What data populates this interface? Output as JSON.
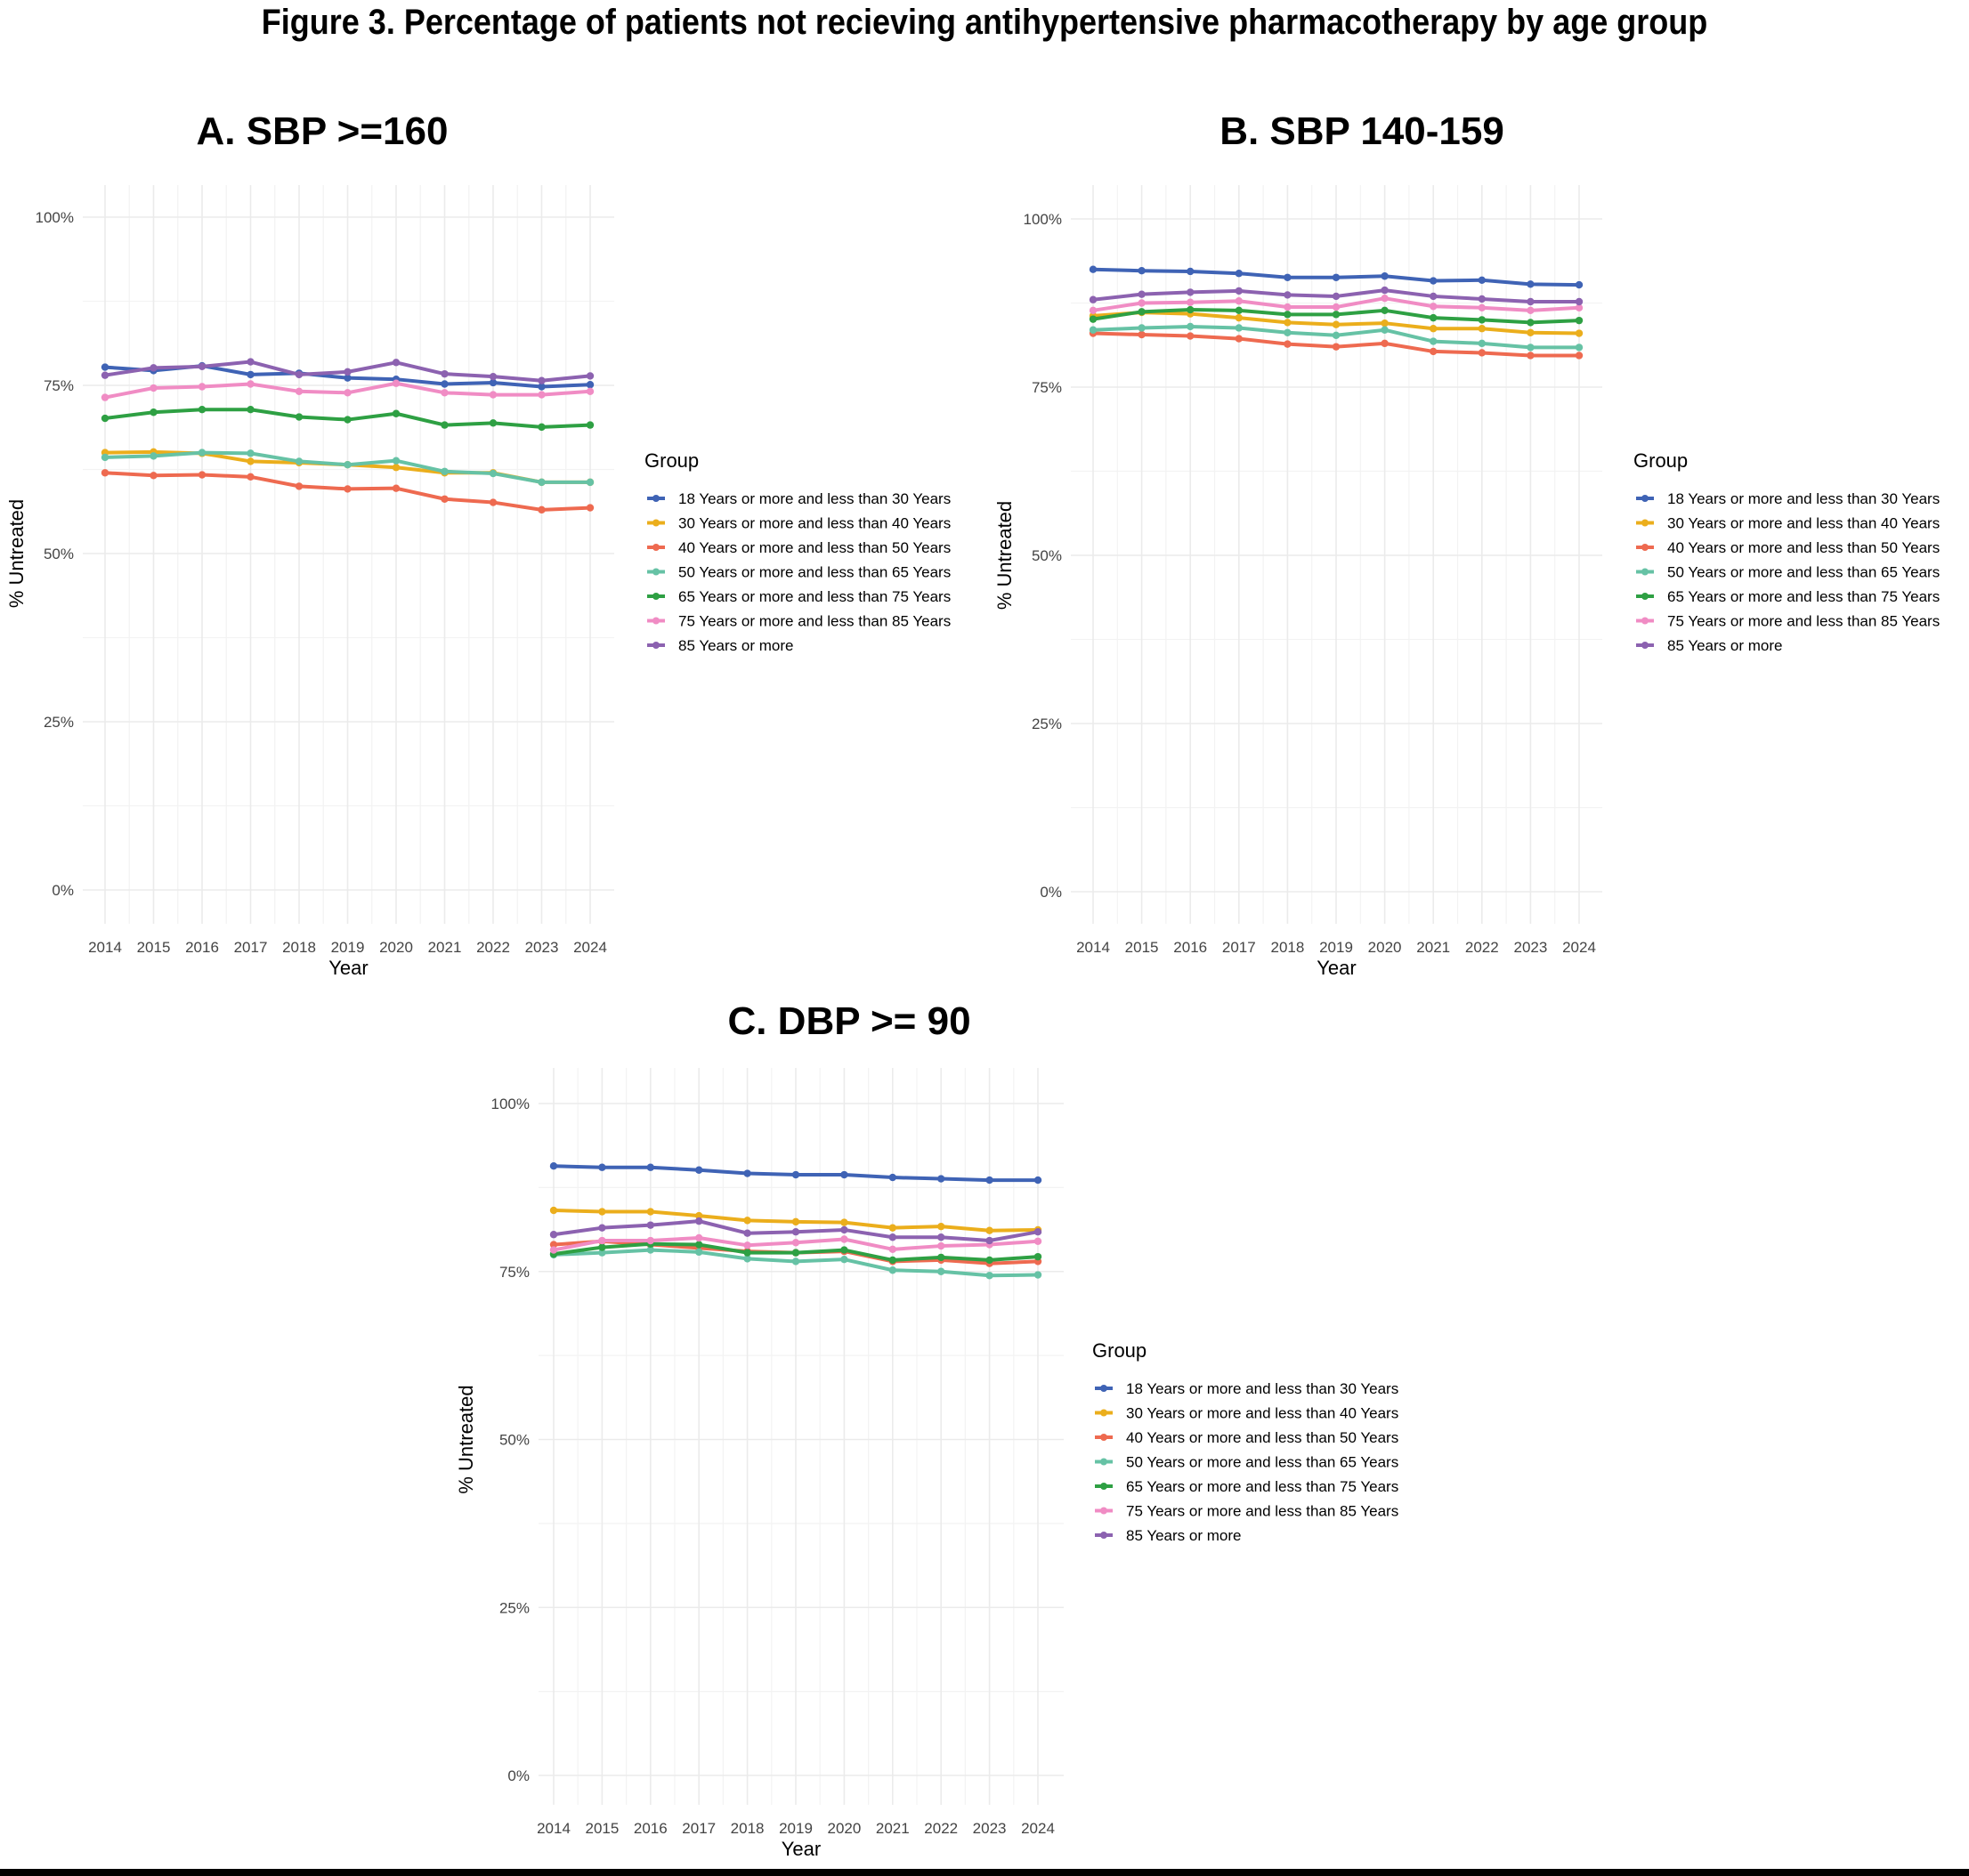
{
  "title": "Figure 3. Percentage of patients not recieving antihypertensive pharmacotherapy by age group",
  "legend_title": "Group",
  "colors": {
    "18 Years or more and less than 30 Years": "#3F63B5",
    "30 Years or more and less than 40 Years": "#EBAE1C",
    "40 Years or more and less than 50 Years": "#EE6A50",
    "50 Years or more and less than 65 Years": "#66C2A5",
    "65 Years or more and less than 75 Years": "#2EA043",
    "75 Years or more and less than 85 Years": "#F08CC4",
    "85 Years or more": "#8C62B0"
  },
  "chart_data": [
    {
      "id": "A",
      "type": "line",
      "title": "A.  SBP >=160",
      "xlabel": "Year",
      "ylabel": "% Untreated",
      "ylim": [
        0,
        100
      ],
      "yticks": [
        0,
        25,
        50,
        75,
        100
      ],
      "ytick_labels": [
        "0%",
        "25%",
        "50%",
        "75%",
        "100%"
      ],
      "x": [
        2014,
        2015,
        2016,
        2017,
        2018,
        2019,
        2020,
        2021,
        2022,
        2023,
        2024
      ],
      "legend_title": "Group",
      "series": [
        {
          "name": "18 Years or more and less than 30 Years",
          "values": [
            77.7,
            77.2,
            77.9,
            76.6,
            76.8,
            76.1,
            75.9,
            75.2,
            75.4,
            74.8,
            75.1
          ]
        },
        {
          "name": "30 Years or more and less than 40 Years",
          "values": [
            65.0,
            65.1,
            64.9,
            63.7,
            63.5,
            63.2,
            62.8,
            62.0,
            62.0,
            60.6,
            60.6
          ]
        },
        {
          "name": "40 Years or more and less than 50 Years",
          "values": [
            62.0,
            61.6,
            61.7,
            61.4,
            60.0,
            59.6,
            59.7,
            58.1,
            57.6,
            56.5,
            56.8
          ]
        },
        {
          "name": "50 Years or more and less than 65 Years",
          "values": [
            64.3,
            64.5,
            65.0,
            64.9,
            63.7,
            63.2,
            63.8,
            62.2,
            61.9,
            60.6,
            60.6
          ]
        },
        {
          "name": "65 Years or more and less than 75 Years",
          "values": [
            70.1,
            71.0,
            71.4,
            71.4,
            70.3,
            69.9,
            70.8,
            69.1,
            69.4,
            68.8,
            69.1
          ]
        },
        {
          "name": "75 Years or more and less than 85 Years",
          "values": [
            73.2,
            74.6,
            74.8,
            75.2,
            74.1,
            73.9,
            75.3,
            73.9,
            73.6,
            73.6,
            74.1
          ]
        },
        {
          "name": "85 Years or more",
          "values": [
            76.5,
            77.6,
            77.8,
            78.5,
            76.6,
            77.0,
            78.4,
            76.7,
            76.3,
            75.7,
            76.4
          ]
        }
      ]
    },
    {
      "id": "B",
      "type": "line",
      "title": "B. SBP 140-159",
      "xlabel": "Year",
      "ylabel": "% Untreated",
      "ylim": [
        0,
        100
      ],
      "yticks": [
        0,
        25,
        50,
        75,
        100
      ],
      "ytick_labels": [
        "0%",
        "25%",
        "50%",
        "75%",
        "100%"
      ],
      "x": [
        2014,
        2015,
        2016,
        2017,
        2018,
        2019,
        2020,
        2021,
        2022,
        2023,
        2024
      ],
      "legend_title": "Group",
      "series": [
        {
          "name": "18 Years or more and less than 30 Years",
          "values": [
            92.5,
            92.3,
            92.2,
            91.9,
            91.3,
            91.3,
            91.5,
            90.8,
            90.9,
            90.3,
            90.2
          ]
        },
        {
          "name": "30 Years or more and less than 40 Years",
          "values": [
            85.6,
            86.1,
            85.9,
            85.3,
            84.6,
            84.3,
            84.5,
            83.7,
            83.7,
            83.1,
            83.0
          ]
        },
        {
          "name": "40 Years or more and less than 50 Years",
          "values": [
            83.0,
            82.8,
            82.6,
            82.2,
            81.4,
            81.0,
            81.5,
            80.3,
            80.1,
            79.7,
            79.7
          ]
        },
        {
          "name": "50 Years or more and less than 65 Years",
          "values": [
            83.5,
            83.8,
            84.0,
            83.8,
            83.1,
            82.7,
            83.5,
            81.8,
            81.5,
            80.9,
            80.9
          ]
        },
        {
          "name": "65 Years or more and less than 75 Years",
          "values": [
            85.1,
            86.2,
            86.5,
            86.4,
            85.8,
            85.8,
            86.4,
            85.3,
            85.0,
            84.6,
            84.9
          ]
        },
        {
          "name": "75 Years or more and less than 85 Years",
          "values": [
            86.4,
            87.5,
            87.6,
            87.8,
            86.9,
            86.9,
            88.2,
            87.0,
            86.8,
            86.4,
            86.8
          ]
        },
        {
          "name": "85 Years or more",
          "values": [
            88.0,
            88.8,
            89.1,
            89.3,
            88.7,
            88.5,
            89.4,
            88.5,
            88.1,
            87.7,
            87.7
          ]
        }
      ]
    },
    {
      "id": "C",
      "type": "line",
      "title": "C. DBP >= 90",
      "xlabel": "Year",
      "ylabel": "% Untreated",
      "ylim": [
        0,
        100
      ],
      "yticks": [
        0,
        25,
        50,
        75,
        100
      ],
      "ytick_labels": [
        "0%",
        "25%",
        "50%",
        "75%",
        "100%"
      ],
      "x": [
        2014,
        2015,
        2016,
        2017,
        2018,
        2019,
        2020,
        2021,
        2022,
        2023,
        2024
      ],
      "legend_title": "Group",
      "series": [
        {
          "name": "18 Years or more and less than 30 Years",
          "values": [
            90.7,
            90.5,
            90.5,
            90.1,
            89.6,
            89.4,
            89.4,
            89.0,
            88.8,
            88.6,
            88.6
          ]
        },
        {
          "name": "30 Years or more and less than 40 Years",
          "values": [
            84.1,
            83.9,
            83.9,
            83.3,
            82.6,
            82.4,
            82.3,
            81.5,
            81.7,
            81.1,
            81.2
          ]
        },
        {
          "name": "40 Years or more and less than 50 Years",
          "values": [
            79.0,
            79.5,
            79.0,
            78.5,
            78.0,
            77.8,
            78.0,
            76.5,
            76.7,
            76.2,
            76.5
          ]
        },
        {
          "name": "50 Years or more and less than 65 Years",
          "values": [
            77.5,
            77.8,
            78.2,
            77.9,
            76.9,
            76.5,
            76.8,
            75.2,
            75.0,
            74.4,
            74.5
          ]
        },
        {
          "name": "65 Years or more and less than 75 Years",
          "values": [
            77.6,
            78.6,
            79.1,
            79.0,
            77.8,
            77.8,
            78.2,
            76.7,
            77.1,
            76.7,
            77.2
          ]
        },
        {
          "name": "75 Years or more and less than 85 Years",
          "values": [
            78.2,
            79.6,
            79.6,
            80.0,
            78.9,
            79.3,
            79.8,
            78.3,
            78.8,
            79.0,
            79.5
          ]
        },
        {
          "name": "85 Years or more",
          "values": [
            80.5,
            81.5,
            81.9,
            82.5,
            80.7,
            80.9,
            81.2,
            80.1,
            80.1,
            79.6,
            80.9
          ]
        }
      ]
    }
  ]
}
